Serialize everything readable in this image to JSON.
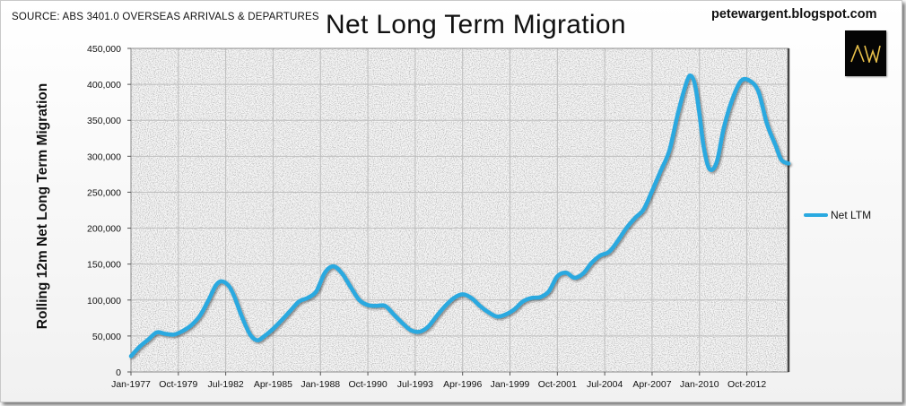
{
  "header": {
    "source": "SOURCE: ABS 3401.0 OVERSEAS ARRIVALS & DEPARTURES",
    "blog": "petewargent.blogspot.com",
    "logo_text": "AW"
  },
  "colors": {
    "series_line": "#29a9e0",
    "plot_border": "#8a8a8a",
    "grid": "#bdbdbd",
    "logo_bg": "#050505",
    "logo_fg": "#e8c04a"
  },
  "chart_data": {
    "type": "line",
    "title": "Net Long Term Migration",
    "xlabel": "",
    "ylabel": "Rolling 12m Net Long Term Migration",
    "ylim": [
      0,
      450000
    ],
    "xlim": [
      "1977-01",
      "2015-03"
    ],
    "y_ticks": [
      0,
      50000,
      100000,
      150000,
      200000,
      250000,
      300000,
      350000,
      400000,
      450000
    ],
    "y_tick_labels": [
      "0",
      "50,000",
      "100,000",
      "150,000",
      "200,000",
      "250,000",
      "300,000",
      "350,000",
      "400,000",
      "450,000"
    ],
    "x_ticks": [
      "1977-01",
      "1979-10",
      "1982-07",
      "1985-04",
      "1988-01",
      "1990-10",
      "1993-07",
      "1996-04",
      "1999-01",
      "2001-10",
      "2004-07",
      "2007-04",
      "2010-01",
      "2012-10"
    ],
    "x_tick_labels": [
      "Jan-1977",
      "Oct-1979",
      "Jul-1982",
      "Apr-1985",
      "Jan-1988",
      "Oct-1990",
      "Jul-1993",
      "Apr-1996",
      "Jan-1999",
      "Oct-2001",
      "Jul-2004",
      "Apr-2007",
      "Jan-2010",
      "Oct-2012"
    ],
    "grid": true,
    "legend": "right",
    "series": [
      {
        "name": "Net LTM",
        "points": [
          [
            "1977-01",
            22000
          ],
          [
            "1977-07",
            35000
          ],
          [
            "1978-01",
            45000
          ],
          [
            "1978-07",
            55000
          ],
          [
            "1979-01",
            53000
          ],
          [
            "1979-07",
            52000
          ],
          [
            "1980-01",
            57000
          ],
          [
            "1980-07",
            65000
          ],
          [
            "1981-01",
            78000
          ],
          [
            "1981-07",
            100000
          ],
          [
            "1981-12",
            120000
          ],
          [
            "1982-04",
            126000
          ],
          [
            "1982-09",
            120000
          ],
          [
            "1983-01",
            105000
          ],
          [
            "1983-06",
            78000
          ],
          [
            "1983-12",
            52000
          ],
          [
            "1984-05",
            44000
          ],
          [
            "1984-10",
            50000
          ],
          [
            "1985-04",
            60000
          ],
          [
            "1985-10",
            72000
          ],
          [
            "1986-04",
            85000
          ],
          [
            "1986-10",
            98000
          ],
          [
            "1987-04",
            103000
          ],
          [
            "1987-10",
            112000
          ],
          [
            "1988-04",
            138000
          ],
          [
            "1988-10",
            147000
          ],
          [
            "1989-04",
            137000
          ],
          [
            "1989-10",
            118000
          ],
          [
            "1990-04",
            100000
          ],
          [
            "1990-10",
            93000
          ],
          [
            "1991-04",
            92000
          ],
          [
            "1991-10",
            92000
          ],
          [
            "1992-04",
            80000
          ],
          [
            "1992-10",
            68000
          ],
          [
            "1993-04",
            58000
          ],
          [
            "1993-10",
            56000
          ],
          [
            "1994-04",
            63000
          ],
          [
            "1994-10",
            78000
          ],
          [
            "1995-04",
            92000
          ],
          [
            "1995-10",
            103000
          ],
          [
            "1996-04",
            108000
          ],
          [
            "1996-10",
            103000
          ],
          [
            "1997-04",
            92000
          ],
          [
            "1997-10",
            83000
          ],
          [
            "1998-04",
            77000
          ],
          [
            "1998-10",
            80000
          ],
          [
            "1999-04",
            87000
          ],
          [
            "1999-10",
            98000
          ],
          [
            "2000-04",
            103000
          ],
          [
            "2000-10",
            104000
          ],
          [
            "2001-04",
            112000
          ],
          [
            "2001-10",
            133000
          ],
          [
            "2002-04",
            138000
          ],
          [
            "2002-10",
            131000
          ],
          [
            "2003-04",
            137000
          ],
          [
            "2003-10",
            152000
          ],
          [
            "2004-04",
            162000
          ],
          [
            "2004-10",
            167000
          ],
          [
            "2005-04",
            182000
          ],
          [
            "2005-10",
            200000
          ],
          [
            "2006-04",
            214000
          ],
          [
            "2006-10",
            226000
          ],
          [
            "2007-04",
            252000
          ],
          [
            "2007-10",
            280000
          ],
          [
            "2008-04",
            308000
          ],
          [
            "2008-10",
            360000
          ],
          [
            "2009-04",
            403000
          ],
          [
            "2009-07",
            412000
          ],
          [
            "2009-10",
            398000
          ],
          [
            "2010-01",
            358000
          ],
          [
            "2010-04",
            312000
          ],
          [
            "2010-08",
            282000
          ],
          [
            "2011-01",
            292000
          ],
          [
            "2011-06",
            340000
          ],
          [
            "2011-12",
            380000
          ],
          [
            "2012-06",
            405000
          ],
          [
            "2012-12",
            405000
          ],
          [
            "2013-06",
            390000
          ],
          [
            "2013-12",
            345000
          ],
          [
            "2014-06",
            315000
          ],
          [
            "2014-10",
            295000
          ],
          [
            "2015-03",
            290000
          ]
        ]
      }
    ]
  }
}
